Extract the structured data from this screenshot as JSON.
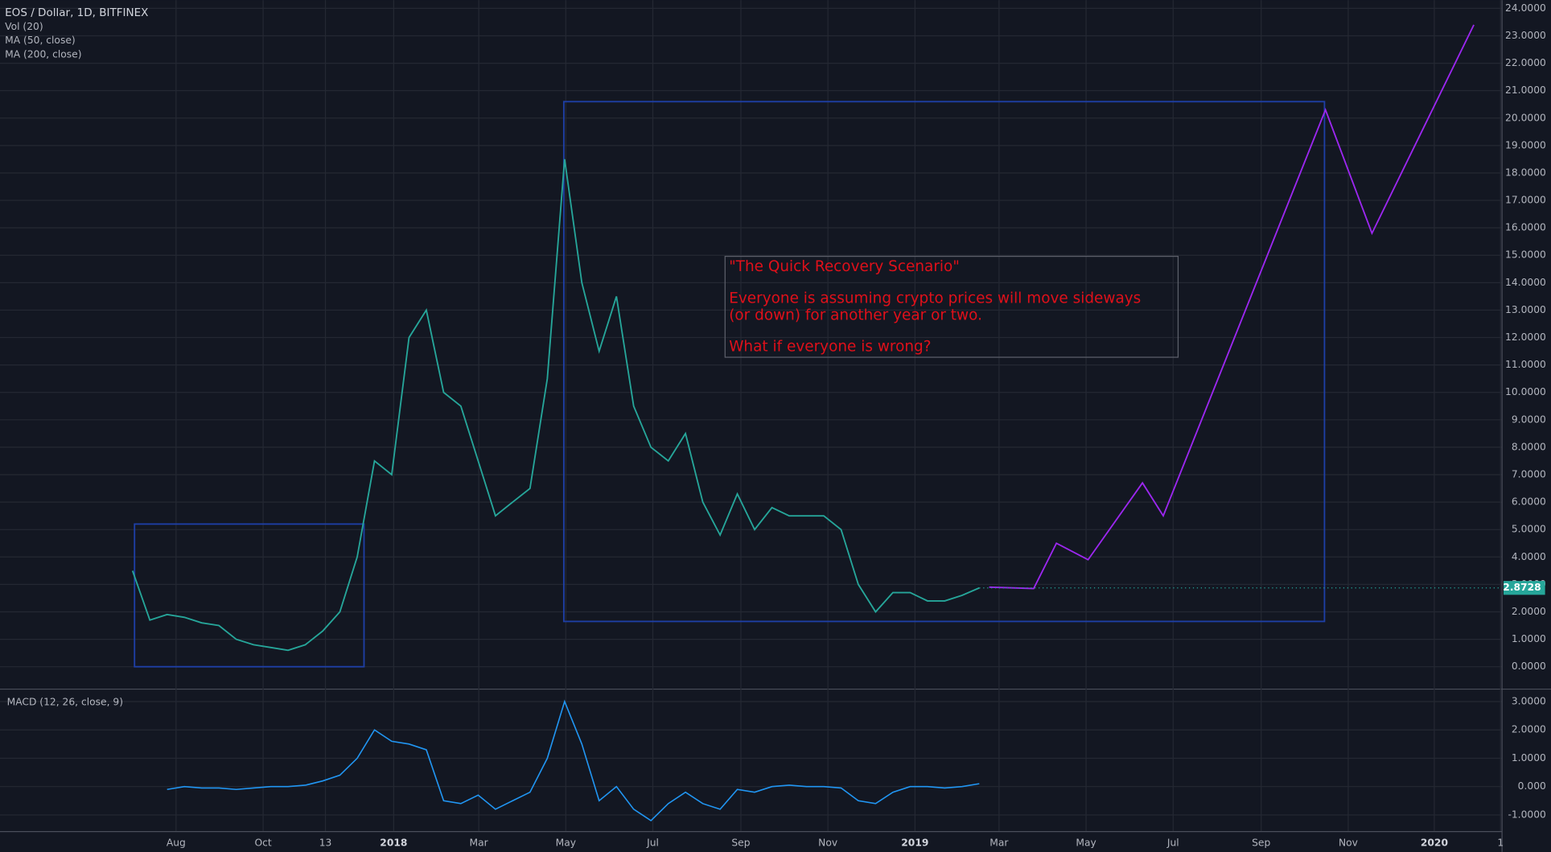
{
  "chart_data": {
    "type": "line",
    "legend": [
      "EOS / Dollar, 1D, BITFINEX",
      "Vol (20)",
      "MA (50, close)",
      "MA (200, close)"
    ],
    "series": [
      {
        "name": "EOS / Dollar",
        "color": "#26a69a",
        "values": [
          3.5,
          1.7,
          1.9,
          1.8,
          1.6,
          1.5,
          1.0,
          0.8,
          0.7,
          0.6,
          0.8,
          1.3,
          2.0,
          4.0,
          7.5,
          7.0,
          12,
          13,
          10,
          9.5,
          7.5,
          5.5,
          6.0,
          6.5,
          10.5,
          18.5,
          14,
          11.5,
          13.5,
          9.5,
          8.0,
          7.5,
          8.5,
          6.0,
          4.8,
          6.3,
          5.0,
          5.8,
          5.5,
          5.5,
          5.5,
          5.0,
          3.0,
          2.0,
          2.7,
          2.7,
          2.4,
          2.4,
          2.6,
          2.87
        ]
      }
    ],
    "projection": {
      "color": "#9c27f0",
      "values": [
        2.9,
        2.85,
        4.5,
        3.9,
        6.7,
        5.5,
        20.3,
        15.8,
        23.4
      ]
    },
    "boxes": [
      {
        "color": "#1e3fa6",
        "low": 0,
        "high": 5.2
      },
      {
        "color": "#1e3fa6",
        "low": 1.65,
        "high": 20.6
      }
    ],
    "last_price": 2.8728,
    "annotation": {
      "title": "\"The Quick Recovery Scenario\"",
      "lines": [
        "Everyone is assuming crypto prices will move sideways",
        "(or down) for another year or two.",
        "What if everyone is wrong?"
      ]
    },
    "ylim": [
      -0.8,
      24.3
    ],
    "yticks": [
      {
        "value": 0,
        "label": "0.0000"
      },
      {
        "value": 1,
        "label": "1.0000"
      },
      {
        "value": 2,
        "label": "2.0000"
      },
      {
        "value": 3,
        "label": "3.0000"
      },
      {
        "value": 4,
        "label": "4.0000"
      },
      {
        "value": 5,
        "label": "5.0000"
      },
      {
        "value": 6,
        "label": "6.0000"
      },
      {
        "value": 7,
        "label": "7.0000"
      },
      {
        "value": 8,
        "label": "8.0000"
      },
      {
        "value": 9,
        "label": "9.0000"
      },
      {
        "value": 10,
        "label": "10.0000"
      },
      {
        "value": 11,
        "label": "11.0000"
      },
      {
        "value": 12,
        "label": "12.0000"
      },
      {
        "value": 13,
        "label": "13.0000"
      },
      {
        "value": 14,
        "label": "14.0000"
      },
      {
        "value": 15,
        "label": "15.0000"
      },
      {
        "value": 16,
        "label": "16.0000"
      },
      {
        "value": 17,
        "label": "17.0000"
      },
      {
        "value": 18,
        "label": "18.0000"
      },
      {
        "value": 19,
        "label": "19.0000"
      },
      {
        "value": 20,
        "label": "20.0000"
      },
      {
        "value": 21,
        "label": "21.0000"
      },
      {
        "value": 22,
        "label": "22.0000"
      },
      {
        "value": 23,
        "label": "23.0000"
      },
      {
        "value": 24,
        "label": "24.0000"
      }
    ],
    "xtick_labels": [
      "Aug",
      "Oct",
      "13",
      "2018",
      "Mar",
      "May",
      "Jul",
      "Sep",
      "Nov",
      "2019",
      "Mar",
      "May",
      "Jul",
      "Sep",
      "Nov",
      "2020",
      "1"
    ],
    "macd": {
      "title": "MACD (12, 26, close, 9)",
      "color": "#2196f3",
      "values": [
        -0.1,
        0,
        -0.05,
        -0.05,
        -0.1,
        -0.05,
        0,
        0,
        0.05,
        0.2,
        0.4,
        1.0,
        2.0,
        1.6,
        1.5,
        1.3,
        -0.5,
        -0.6,
        -0.3,
        -0.8,
        -0.5,
        -0.2,
        1.0,
        3.0,
        1.5,
        -0.5,
        0,
        -0.8,
        -1.2,
        -0.6,
        -0.2,
        -0.6,
        -0.8,
        -0.1,
        -0.2,
        0,
        0.05,
        0,
        0,
        -0.05,
        -0.5,
        -0.6,
        -0.2,
        0,
        0,
        -0.05,
        0,
        0.1
      ],
      "ylim": [
        -1.57,
        3.42
      ],
      "yticks": [
        {
          "value": 3,
          "label": "3.0000"
        },
        {
          "value": 2,
          "label": "2.0000"
        },
        {
          "value": 1,
          "label": "1.0000"
        },
        {
          "value": 0,
          "label": "0.000"
        },
        {
          "value": -1,
          "label": "-1.0000"
        }
      ]
    }
  }
}
